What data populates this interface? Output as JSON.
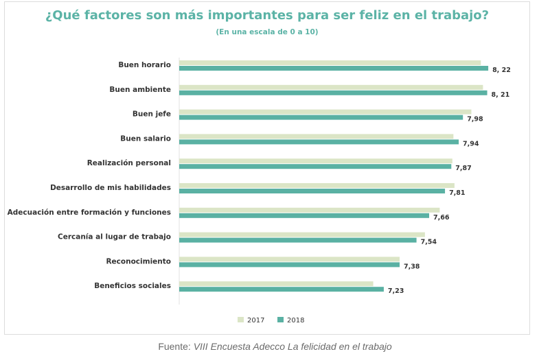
{
  "chart_data": {
    "type": "bar",
    "title": "¿Qué factores son más importantes para ser feliz en el trabajo?",
    "subtitle": "(En una escala de 0 a 10)",
    "categories": [
      "Buen horario",
      "Buen ambiente",
      "Buen jefe",
      "Buen salario",
      "Realización personal",
      "Desarrollo de mis habilidades",
      "Adecuación entre formación y funciones",
      "Cercanía al lugar de trabajo",
      "Reconocimiento",
      "Beneficios sociales"
    ],
    "series": [
      {
        "name": "2017",
        "color": "#dbe5c6",
        "values": [
          8.15,
          8.17,
          8.06,
          7.89,
          7.88,
          7.9,
          7.76,
          7.62,
          7.38,
          7.13
        ]
      },
      {
        "name": "2018",
        "color": "#5ab1a3",
        "values": [
          8.22,
          8.21,
          7.98,
          7.94,
          7.87,
          7.81,
          7.66,
          7.54,
          7.38,
          7.23
        ]
      }
    ],
    "value_labels": [
      "8, 22",
      "8, 21",
      "7,98",
      "7,94",
      "7,87",
      "7,81",
      "7,66",
      "7,54",
      "7,38",
      "7,23"
    ],
    "orientation": "horizontal",
    "legend_position": "bottom-center",
    "grid": false
  },
  "caption": {
    "prefix": "Fuente: ",
    "source": "VIII Encuesta Adecco La felicidad en el trabajo"
  }
}
